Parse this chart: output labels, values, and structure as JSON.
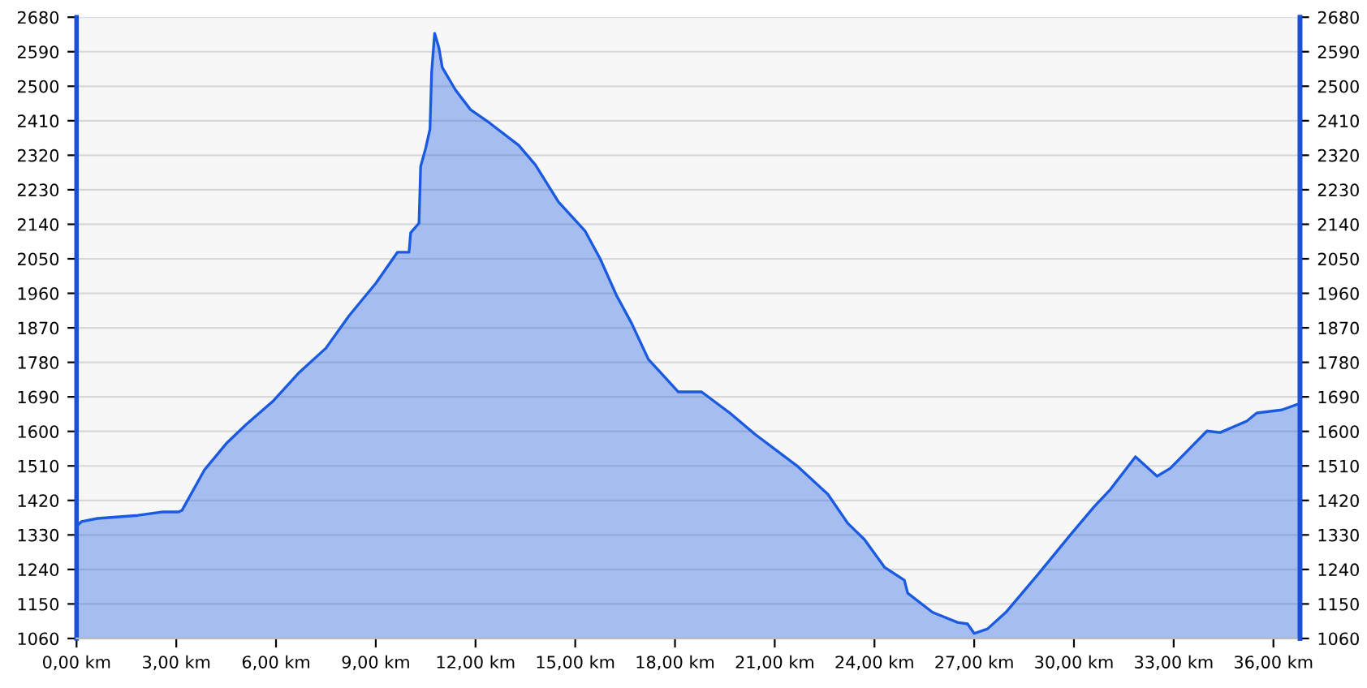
{
  "chart_data": {
    "type": "area",
    "color": "#1a5ae0",
    "x": [
      0,
      0.15,
      0.63,
      1.85,
      2.6,
      3.07,
      3.17,
      3.85,
      4.5,
      5.1,
      5.9,
      6.7,
      7.5,
      8.2,
      9.0,
      9.65,
      10.0,
      10.05,
      10.3,
      10.35,
      10.5,
      10.63,
      10.68,
      10.77,
      10.9,
      11.0,
      11.4,
      11.85,
      12.35,
      13.3,
      13.8,
      14.5,
      15.3,
      15.75,
      16.25,
      16.7,
      17.2,
      17.7,
      18.1,
      18.8,
      19.65,
      20.4,
      21.7,
      22.6,
      23.2,
      23.7,
      24.3,
      24.9,
      25.0,
      25.75,
      26.5,
      26.8,
      27.0,
      27.4,
      27.95,
      28.9,
      29.9,
      30.6,
      31.1,
      31.7,
      31.85,
      32.5,
      32.9,
      34.0,
      34.4,
      35.2,
      35.5,
      36.25,
      36.8
    ],
    "values": [
      1352,
      1365,
      1373,
      1381,
      1390,
      1390,
      1394,
      1500,
      1568,
      1618,
      1678,
      1754,
      1817,
      1902,
      1986,
      2067,
      2067,
      2118,
      2143,
      2291,
      2338,
      2388,
      2536,
      2638,
      2600,
      2549,
      2490,
      2439,
      2409,
      2346,
      2295,
      2198,
      2122,
      2050,
      1953,
      1881,
      1788,
      1741,
      1703,
      1703,
      1648,
      1593,
      1508,
      1436,
      1360,
      1318,
      1246,
      1212,
      1178,
      1128,
      1102,
      1098,
      1073,
      1085,
      1128,
      1225,
      1331,
      1403,
      1449,
      1517,
      1534,
      1483,
      1504,
      1601,
      1597,
      1627,
      1648,
      1656,
      1673
    ],
    "xlim": [
      0,
      36.8
    ],
    "xticks": [
      {
        "value": 0,
        "label": "0,00 km"
      },
      {
        "value": 3,
        "label": "3,00 km"
      },
      {
        "value": 6,
        "label": "6,00 km"
      },
      {
        "value": 9,
        "label": "9,00 km"
      },
      {
        "value": 12,
        "label": "12,00 km"
      },
      {
        "value": 15,
        "label": "15,00 km"
      },
      {
        "value": 18,
        "label": "18,00 km"
      },
      {
        "value": 21,
        "label": "21,00 km"
      },
      {
        "value": 24,
        "label": "24,00 km"
      },
      {
        "value": 27,
        "label": "27,00 km"
      },
      {
        "value": 30,
        "label": "30,00 km"
      },
      {
        "value": 33,
        "label": "33,00 km"
      },
      {
        "value": 36,
        "label": "36,00 km"
      }
    ],
    "ylim": [
      1060,
      2680
    ],
    "yticks": [
      1060,
      1150,
      1240,
      1330,
      1420,
      1510,
      1600,
      1690,
      1780,
      1870,
      1960,
      2050,
      2140,
      2230,
      2320,
      2410,
      2500,
      2590,
      2680
    ],
    "y2lim": [
      1060,
      2680
    ],
    "y2ticks": [
      1060,
      1150,
      1240,
      1330,
      1420,
      1510,
      1600,
      1690,
      1780,
      1870,
      1960,
      2050,
      2140,
      2230,
      2320,
      2410,
      2500,
      2590,
      2680
    ],
    "grid": "y",
    "legend": false
  }
}
